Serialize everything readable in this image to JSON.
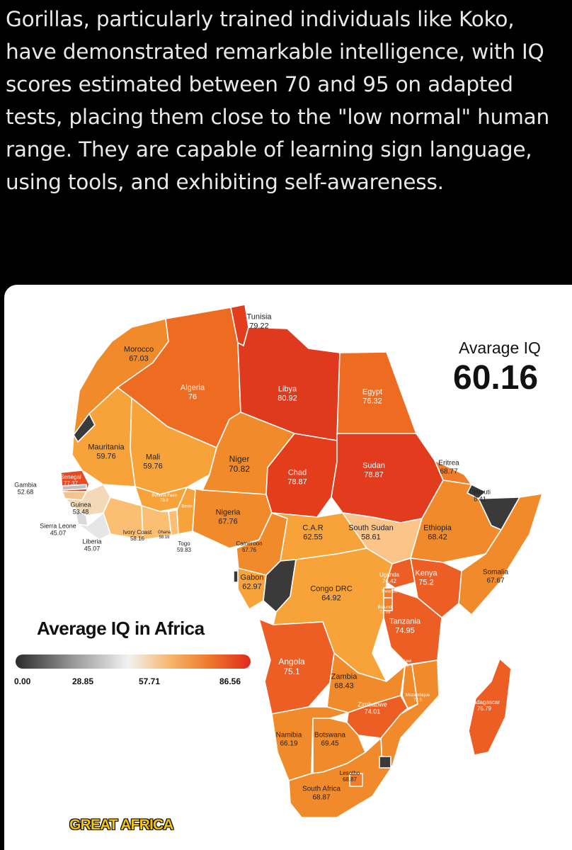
{
  "tweet": {
    "text": "Gorillas, particularly trained individuals like Koko, have demonstrated remarkable intelligence, with IQ scores estimated between 70 and 95 on adapted tests, placing them close to the \"low normal\" human range. They are capable of learning sign language, using tools, and exhibiting self-awareness."
  },
  "map": {
    "title": "Average IQ in Africa",
    "average_title": "Avarage IQ",
    "average_value": "60.16",
    "brand": "GREAT AFRICA",
    "legend": {
      "ticks": [
        "0.00",
        "28.85",
        "57.71",
        "86.56"
      ]
    },
    "colors": {
      "low": "#2b2b2b",
      "mid": "#f2f2f2",
      "orange": "#ee7a2c",
      "high": "#e22a1e",
      "water": "#ffffff"
    },
    "countries": [
      {
        "name": "Tunisia",
        "value": "79.22"
      },
      {
        "name": "Morocco",
        "value": "67.03"
      },
      {
        "name": "Algeria",
        "value": "76"
      },
      {
        "name": "Libya",
        "value": "80.92"
      },
      {
        "name": "Egypt",
        "value": "76.32"
      },
      {
        "name": "Mauritania",
        "value": "59.76"
      },
      {
        "name": "Mali",
        "value": "59.76"
      },
      {
        "name": "Niger",
        "value": "70.82"
      },
      {
        "name": "Chad",
        "value": "78.87"
      },
      {
        "name": "Sudan",
        "value": "78.87"
      },
      {
        "name": "Eritrea",
        "value": "68.77"
      },
      {
        "name": "Djibouti",
        "value": "8.41"
      },
      {
        "name": "Senegal",
        "value": "77.37"
      },
      {
        "name": "Gambia",
        "value": "52.68"
      },
      {
        "name": "Guinea",
        "value": "53.48"
      },
      {
        "name": "Sierra Leone",
        "value": "45.07"
      },
      {
        "name": "Liberia",
        "value": "45.07"
      },
      {
        "name": "Ivory Coast",
        "value": "58.16"
      },
      {
        "name": "Ghana",
        "value": "58.16"
      },
      {
        "name": "Burkina Faso",
        "value": "73.8"
      },
      {
        "name": "Benin",
        "value": ""
      },
      {
        "name": "Togo",
        "value": "59.83"
      },
      {
        "name": "Nigeria",
        "value": "67.76"
      },
      {
        "name": "Cameroon",
        "value": "67.76"
      },
      {
        "name": "C.A.R",
        "value": "62.55"
      },
      {
        "name": "South Sudan",
        "value": "58.61"
      },
      {
        "name": "Ethiopia",
        "value": "68.42"
      },
      {
        "name": "Somalia",
        "value": "67.67"
      },
      {
        "name": "Kenya",
        "value": "75.2"
      },
      {
        "name": "Uganda",
        "value": "76.42"
      },
      {
        "name": "Rwanda",
        "value": ""
      },
      {
        "name": "Burundi",
        "value": "72.09"
      },
      {
        "name": "Gabon",
        "value": "62.97"
      },
      {
        "name": "Congo DRC",
        "value": "64.92"
      },
      {
        "name": "Tanzania",
        "value": "74.95"
      },
      {
        "name": "Angola",
        "value": "75.1"
      },
      {
        "name": "Zambia",
        "value": "68.43"
      },
      {
        "name": "Malawi",
        "value": "69.7"
      },
      {
        "name": "Mozambique",
        "value": "72.5"
      },
      {
        "name": "Zimbabwe",
        "value": "74.01"
      },
      {
        "name": "Madagascar",
        "value": "76.79"
      },
      {
        "name": "Namibia",
        "value": "66.19"
      },
      {
        "name": "Botswana",
        "value": "69.45"
      },
      {
        "name": "Lesotho",
        "value": "68.87"
      },
      {
        "name": "South Africa",
        "value": "68.87"
      }
    ]
  }
}
